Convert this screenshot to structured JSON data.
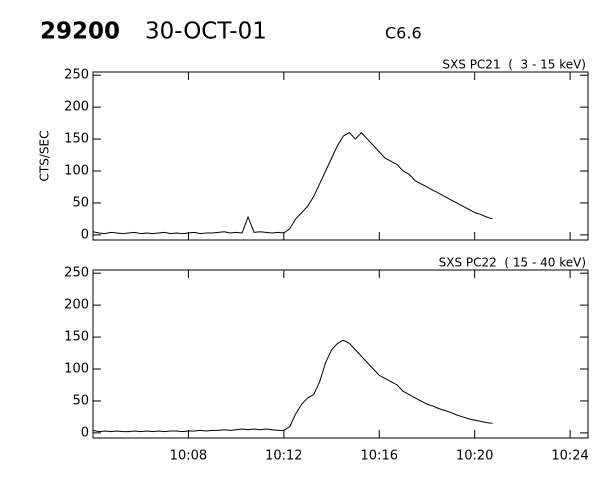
{
  "header": {
    "id": "29200",
    "date": "30-OCT-01",
    "flare_class": "C6.6"
  },
  "chart_data": [
    {
      "type": "line",
      "title": "SXS PC21  (  3 - 15 keV)",
      "y_label": "CTS/SEC",
      "x": [
        604,
        604.25,
        604.5,
        604.75,
        605,
        605.25,
        605.5,
        605.75,
        606,
        606.25,
        606.5,
        606.75,
        607,
        607.25,
        607.5,
        607.75,
        608,
        608.25,
        608.5,
        608.75,
        609,
        609.25,
        609.5,
        609.75,
        610,
        610.25,
        610.5,
        610.75,
        611,
        611.25,
        611.5,
        611.75,
        612,
        612.25,
        612.5,
        612.75,
        613,
        613.25,
        613.5,
        613.75,
        614,
        614.25,
        614.5,
        614.75,
        615,
        615.25,
        615.5,
        615.75,
        616,
        616.25,
        616.5,
        616.75,
        617,
        617.25,
        617.5,
        617.75,
        618,
        618.25,
        618.5,
        618.75,
        619,
        619.25,
        619.5,
        619.75,
        620,
        620.25,
        620.5,
        620.75
      ],
      "series": [
        {
          "name": "SXS PC21",
          "color": "#000000",
          "values": [
            5,
            3,
            2,
            4,
            3,
            2,
            3,
            4,
            2,
            3,
            2,
            3,
            4,
            2,
            3,
            2,
            3,
            4,
            2,
            3,
            3,
            4,
            5,
            3,
            4,
            3,
            28,
            4,
            5,
            4,
            3,
            4,
            3,
            10,
            25,
            35,
            45,
            60,
            80,
            100,
            120,
            140,
            155,
            160,
            150,
            160,
            150,
            140,
            130,
            120,
            115,
            110,
            100,
            95,
            85,
            80,
            75,
            70,
            65,
            60,
            55,
            50,
            45,
            40,
            35,
            32,
            28,
            25
          ]
        }
      ],
      "xlim": [
        604,
        624.75
      ],
      "ylim": [
        -8,
        255
      ],
      "yticks": [
        0,
        50,
        100,
        150,
        200,
        250
      ],
      "xticks": [
        {
          "value": 608,
          "label": "10:08"
        },
        {
          "value": 612,
          "label": "10:12"
        },
        {
          "value": 616,
          "label": "10:16"
        },
        {
          "value": 620,
          "label": "10:20"
        },
        {
          "value": 624,
          "label": "10:24"
        }
      ]
    },
    {
      "type": "line",
      "title": "SXS PC22  ( 15 - 40 keV)",
      "x": [
        604,
        604.25,
        604.5,
        604.75,
        605,
        605.25,
        605.5,
        605.75,
        606,
        606.25,
        606.5,
        606.75,
        607,
        607.25,
        607.5,
        607.75,
        608,
        608.25,
        608.5,
        608.75,
        609,
        609.25,
        609.5,
        609.75,
        610,
        610.25,
        610.5,
        610.75,
        611,
        611.25,
        611.5,
        611.75,
        612,
        612.25,
        612.5,
        612.75,
        613,
        613.25,
        613.5,
        613.75,
        614,
        614.25,
        614.5,
        614.75,
        615,
        615.25,
        615.5,
        615.75,
        616,
        616.25,
        616.5,
        616.75,
        617,
        617.25,
        617.5,
        617.75,
        618,
        618.25,
        618.5,
        618.75,
        619,
        619.25,
        619.5,
        619.75,
        620,
        620.25,
        620.5,
        620.75
      ],
      "series": [
        {
          "name": "SXS PC22",
          "color": "#000000",
          "values": [
            4,
            2,
            3,
            2,
            3,
            2,
            2,
            3,
            2,
            3,
            2,
            3,
            2,
            3,
            3,
            2,
            3,
            3,
            4,
            3,
            4,
            4,
            5,
            4,
            5,
            6,
            5,
            6,
            5,
            6,
            5,
            4,
            4,
            10,
            30,
            45,
            55,
            60,
            80,
            110,
            130,
            140,
            145,
            140,
            130,
            120,
            110,
            100,
            90,
            85,
            80,
            75,
            65,
            60,
            55,
            50,
            45,
            42,
            38,
            35,
            32,
            28,
            25,
            22,
            20,
            18,
            16,
            15
          ]
        }
      ],
      "xlim": [
        604,
        624.75
      ],
      "ylim": [
        -8,
        255
      ],
      "yticks": [
        0,
        50,
        100,
        150,
        200,
        250
      ],
      "xticks": [
        {
          "value": 608,
          "label": "10:08"
        },
        {
          "value": 612,
          "label": "10:12"
        },
        {
          "value": 616,
          "label": "10:16"
        },
        {
          "value": 620,
          "label": "10:20"
        },
        {
          "value": 624,
          "label": "10:24"
        }
      ]
    }
  ]
}
